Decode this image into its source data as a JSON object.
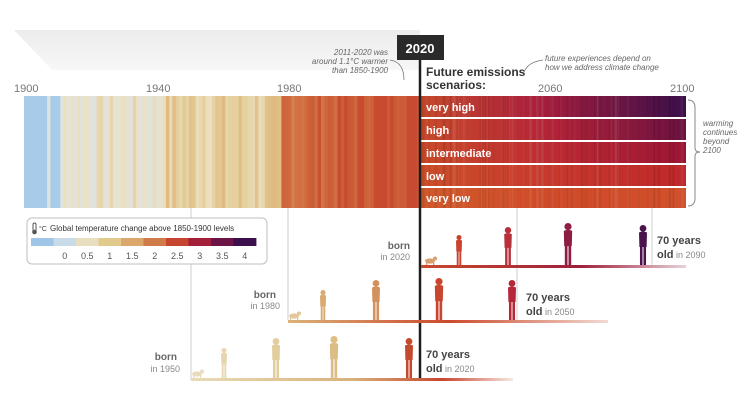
{
  "timeline": {
    "year_labels": [
      "1900",
      "1940",
      "1980",
      "2020",
      "2060",
      "2100"
    ],
    "current_year": "2020"
  },
  "annotations": {
    "past_note": [
      "2011-2020 was",
      "around 1.1°C warmer",
      "than 1850-1900"
    ],
    "future_title": [
      "Future emissions",
      "scenarios:"
    ],
    "future_note": [
      "future experiences depend on",
      "how we address climate change"
    ],
    "continues_note": [
      "warming",
      "continues",
      "beyond",
      "2100"
    ]
  },
  "scenarios": [
    {
      "label": "very high",
      "end_color": "#3a0f4a"
    },
    {
      "label": "high",
      "end_color": "#6a1240"
    },
    {
      "label": "intermediate",
      "end_color": "#9a1535"
    },
    {
      "label": "low",
      "end_color": "#c0282b"
    },
    {
      "label": "very low",
      "end_color": "#cf4a28"
    }
  ],
  "legend": {
    "title": "Global temperature change above 1850-1900 levels",
    "unit_icon": "thermometer-icon",
    "ticks": [
      "0",
      "0.5",
      "1",
      "1.5",
      "2",
      "2.5",
      "3",
      "3.5",
      "4"
    ],
    "colors": [
      "#9fc6e6",
      "#c9dbe8",
      "#e9dfc0",
      "#e2c98c",
      "#dba76a",
      "#d27b4a",
      "#c6452f",
      "#a3203a",
      "#6b1446",
      "#3b0f4b"
    ]
  },
  "generations": [
    {
      "born_label": "born",
      "born_year": "in 2020",
      "age_label": "70 years",
      "age_suffix_bold": "old",
      "age_year": "in 2090"
    },
    {
      "born_label": "born",
      "born_year": "in 1980",
      "age_label": "70 years",
      "age_suffix_bold": "old",
      "age_year": "in 2050"
    },
    {
      "born_label": "born",
      "born_year": "in 1950",
      "age_label": "70 years",
      "age_suffix_bold": "old",
      "age_year": "in 2020"
    }
  ]
}
